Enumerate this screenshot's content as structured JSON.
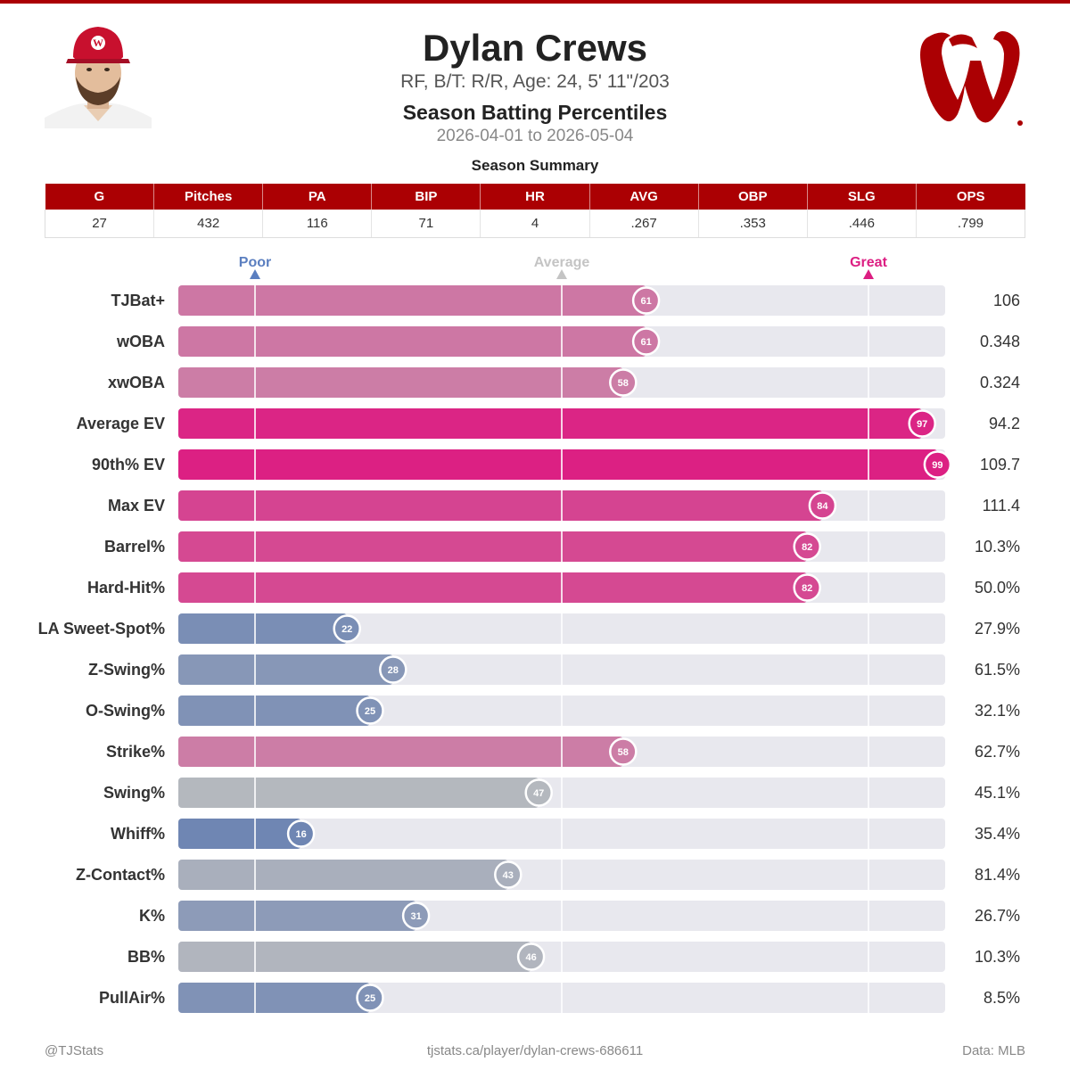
{
  "header": {
    "player_name": "Dylan Crews",
    "bio": "RF, B/T: R/R, Age: 24, 5' 11\"/203",
    "report_title": "Season Batting Percentiles",
    "date_range": "2026-04-01 to 2026-05-04"
  },
  "team_logo": {
    "icon": "washington-nationals-w-logo-icon",
    "color": "#ab0003"
  },
  "summary": {
    "title": "Season Summary",
    "columns": [
      "G",
      "Pitches",
      "PA",
      "BIP",
      "HR",
      "AVG",
      "OBP",
      "SLG",
      "OPS"
    ],
    "values": [
      "27",
      "432",
      "116",
      "71",
      "4",
      ".267",
      ".353",
      ".446",
      ".799"
    ]
  },
  "chart_data": {
    "type": "bar",
    "orientation": "horizontal",
    "scale_labels": {
      "poor": "Poor",
      "average": "Average",
      "great": "Great"
    },
    "scale_markers": {
      "poor": 10,
      "average": 50,
      "great": 90
    },
    "xlim": [
      0,
      100
    ],
    "colors": {
      "poor": "#325aaa",
      "average": "#c0c0c0",
      "great": "#dc1e82",
      "track": "#e8e8ee"
    },
    "rows": [
      {
        "label": "TJBat+",
        "percentile": 61,
        "value": "106"
      },
      {
        "label": "wOBA",
        "percentile": 61,
        "value": "0.348"
      },
      {
        "label": "xwOBA",
        "percentile": 58,
        "value": "0.324"
      },
      {
        "label": "Average EV",
        "percentile": 97,
        "value": "94.2"
      },
      {
        "label": "90th% EV",
        "percentile": 99,
        "value": "109.7"
      },
      {
        "label": "Max EV",
        "percentile": 84,
        "value": "111.4"
      },
      {
        "label": "Barrel%",
        "percentile": 82,
        "value": "10.3%"
      },
      {
        "label": "Hard-Hit%",
        "percentile": 82,
        "value": "50.0%"
      },
      {
        "label": "LA Sweet-Spot%",
        "percentile": 22,
        "value": "27.9%"
      },
      {
        "label": "Z-Swing%",
        "percentile": 28,
        "value": "61.5%"
      },
      {
        "label": "O-Swing%",
        "percentile": 25,
        "value": "32.1%"
      },
      {
        "label": "Strike%",
        "percentile": 58,
        "value": "62.7%"
      },
      {
        "label": "Swing%",
        "percentile": 47,
        "value": "45.1%"
      },
      {
        "label": "Whiff%",
        "percentile": 16,
        "value": "35.4%"
      },
      {
        "label": "Z-Contact%",
        "percentile": 43,
        "value": "81.4%"
      },
      {
        "label": "K%",
        "percentile": 31,
        "value": "26.7%"
      },
      {
        "label": "BB%",
        "percentile": 46,
        "value": "10.3%"
      },
      {
        "label": "PullAir%",
        "percentile": 25,
        "value": "8.5%"
      }
    ]
  },
  "footer": {
    "left": "@TJStats",
    "center": "tjstats.ca/player/dylan-crews-686611",
    "right": "Data: MLB"
  }
}
